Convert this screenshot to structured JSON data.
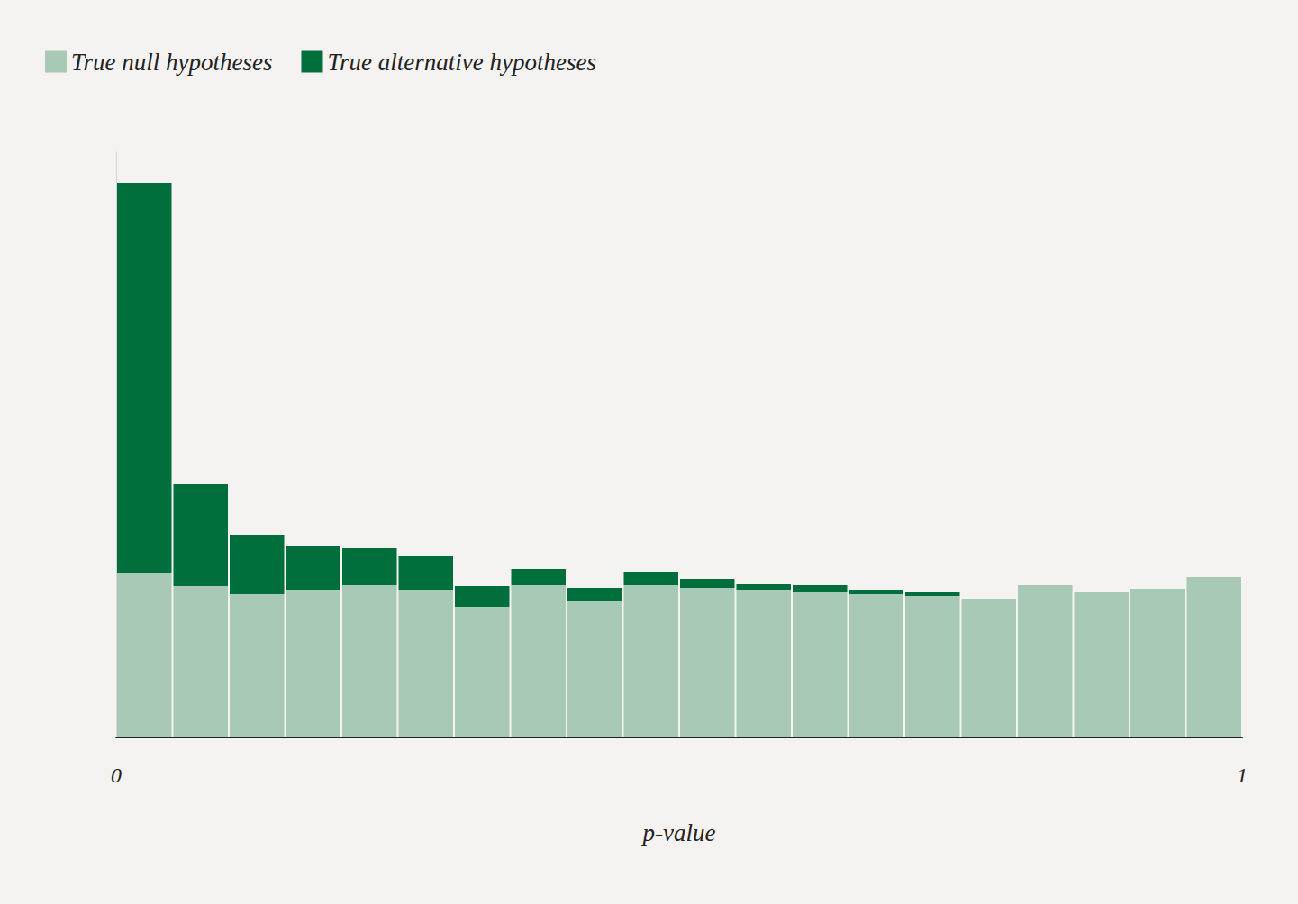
{
  "chart_data": {
    "type": "histogram",
    "stacked": true,
    "x_label": "p-value",
    "bins": [
      0,
      0.05,
      0.1,
      0.15,
      0.2,
      0.25,
      0.3,
      0.35,
      0.4,
      0.45,
      0.5,
      0.55,
      0.6,
      0.65,
      0.7,
      0.75,
      0.8,
      0.85,
      0.9,
      0.95,
      1
    ],
    "series": [
      {
        "name": "True null hypotheses",
        "color": "#a7c9b5",
        "values": [
          183,
          168,
          159,
          164,
          169,
          164,
          145,
          169,
          151,
          169,
          166,
          164,
          162,
          159,
          157,
          154,
          169,
          161,
          165,
          178
        ]
      },
      {
        "name": "True alternative hypotheses",
        "color": "#006f3c",
        "values": [
          433,
          113,
          66,
          49,
          41,
          37,
          23,
          18,
          15,
          15,
          10,
          6,
          7,
          5,
          4,
          0,
          0,
          0,
          0,
          0
        ]
      }
    ],
    "xlim": [
      0,
      1
    ],
    "xticks": [
      0,
      1
    ],
    "ylim": [
      0,
      650
    ],
    "tick_labels": "x",
    "grid": false,
    "legend": "top-left"
  }
}
